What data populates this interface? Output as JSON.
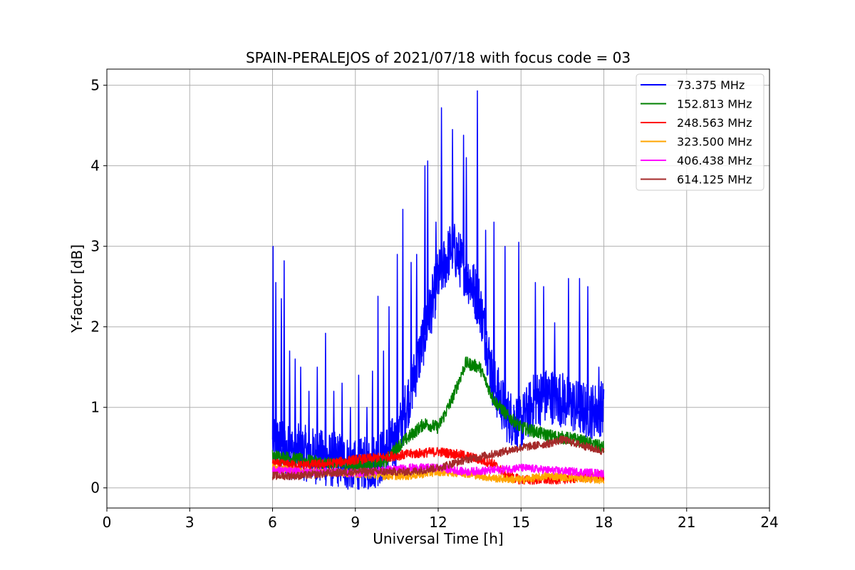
{
  "chart_data": {
    "type": "line",
    "title": "SPAIN-PERALEJOS of 2021/07/18 with focus code = 03",
    "xlabel": "Universal Time [h]",
    "ylabel": "Y-factor [dB]",
    "xlim": [
      0,
      24
    ],
    "ylim": [
      -0.25,
      5.2
    ],
    "xticks": [
      0,
      3,
      6,
      9,
      12,
      15,
      18,
      21,
      24
    ],
    "yticks": [
      0,
      1,
      2,
      3,
      4,
      5
    ],
    "xtick_labels": [
      "0",
      "3",
      "6",
      "9",
      "12",
      "15",
      "18",
      "21",
      "24"
    ],
    "ytick_labels": [
      "0",
      "1",
      "2",
      "3",
      "4",
      "5"
    ],
    "grid": true,
    "legend_position": "top-right",
    "series": [
      {
        "name": "  73.375 MHz",
        "color": "#0000ff",
        "noise": 0.35,
        "x": [
          6.0,
          6.5,
          7.0,
          7.5,
          8.0,
          8.5,
          9.0,
          9.5,
          10.0,
          10.5,
          11.0,
          11.5,
          12.0,
          12.5,
          13.0,
          13.5,
          14.0,
          14.5,
          15.0,
          15.5,
          16.0,
          16.5,
          17.0,
          17.5,
          18.0
        ],
        "y": [
          0.6,
          0.45,
          0.45,
          0.4,
          0.35,
          0.35,
          0.25,
          0.3,
          0.4,
          0.6,
          1.2,
          1.9,
          2.6,
          3.0,
          2.7,
          2.3,
          1.3,
          0.9,
          0.8,
          1.1,
          1.15,
          1.1,
          1.0,
          0.95,
          1.0
        ],
        "spikes": [
          [
            6.0,
            3.0
          ],
          [
            6.1,
            2.55
          ],
          [
            6.3,
            2.35
          ],
          [
            6.4,
            2.82
          ],
          [
            6.6,
            1.7
          ],
          [
            6.8,
            1.6
          ],
          [
            7.0,
            1.5
          ],
          [
            7.3,
            1.2
          ],
          [
            7.6,
            1.5
          ],
          [
            7.9,
            1.92
          ],
          [
            8.2,
            1.2
          ],
          [
            8.5,
            1.3
          ],
          [
            8.8,
            1.0
          ],
          [
            9.1,
            1.4
          ],
          [
            9.4,
            1.0
          ],
          [
            9.6,
            1.45
          ],
          [
            9.8,
            2.38
          ],
          [
            10.0,
            1.7
          ],
          [
            10.2,
            2.25
          ],
          [
            10.5,
            2.9
          ],
          [
            10.7,
            3.46
          ],
          [
            11.0,
            2.8
          ],
          [
            11.2,
            2.9
          ],
          [
            11.5,
            4.0
          ],
          [
            11.6,
            4.06
          ],
          [
            11.9,
            3.3
          ],
          [
            12.1,
            4.72
          ],
          [
            12.5,
            4.45
          ],
          [
            12.9,
            4.38
          ],
          [
            13.0,
            4.1
          ],
          [
            13.4,
            4.93
          ],
          [
            13.7,
            3.2
          ],
          [
            14.0,
            3.3
          ],
          [
            14.4,
            3.0
          ],
          [
            14.9,
            3.05
          ],
          [
            15.5,
            2.55
          ],
          [
            15.8,
            2.5
          ],
          [
            16.2,
            2.05
          ],
          [
            16.7,
            2.6
          ],
          [
            17.1,
            2.6
          ],
          [
            17.4,
            2.5
          ],
          [
            17.8,
            1.5
          ]
        ]
      },
      {
        "name": "152.813 MHz",
        "color": "#008000",
        "noise": 0.08,
        "x": [
          6.0,
          7.0,
          8.0,
          9.0,
          10.0,
          10.5,
          11.0,
          11.5,
          12.0,
          12.5,
          13.0,
          13.5,
          14.0,
          14.5,
          15.0,
          16.0,
          17.0,
          18.0
        ],
        "y": [
          0.4,
          0.35,
          0.3,
          0.28,
          0.3,
          0.5,
          0.65,
          0.8,
          0.75,
          1.1,
          1.55,
          1.5,
          1.1,
          0.9,
          0.75,
          0.65,
          0.6,
          0.5
        ]
      },
      {
        "name": "248.563 MHz",
        "color": "#ff0000",
        "noise": 0.06,
        "x": [
          6.0,
          7.0,
          8.0,
          9.0,
          10.0,
          11.0,
          12.0,
          13.0,
          14.0,
          14.5,
          15.0,
          16.0,
          17.0,
          18.0
        ],
        "y": [
          0.3,
          0.28,
          0.3,
          0.35,
          0.38,
          0.42,
          0.45,
          0.4,
          0.3,
          0.15,
          0.1,
          0.1,
          0.12,
          0.15
        ]
      },
      {
        "name": "323.500 MHz",
        "color": "#ffa500",
        "noise": 0.05,
        "x": [
          6.0,
          7.0,
          8.0,
          9.0,
          10.0,
          11.0,
          12.0,
          13.0,
          14.0,
          15.0,
          16.0,
          17.0,
          18.0
        ],
        "y": [
          0.25,
          0.2,
          0.2,
          0.18,
          0.15,
          0.15,
          0.2,
          0.18,
          0.12,
          0.1,
          0.15,
          0.12,
          0.1
        ]
      },
      {
        "name": "406.438 MHz",
        "color": "#ff00ff",
        "noise": 0.05,
        "x": [
          6.0,
          7.0,
          8.0,
          9.0,
          10.0,
          11.0,
          12.0,
          13.0,
          14.0,
          15.0,
          16.0,
          17.0,
          18.0
        ],
        "y": [
          0.22,
          0.2,
          0.2,
          0.18,
          0.22,
          0.25,
          0.25,
          0.2,
          0.22,
          0.25,
          0.22,
          0.2,
          0.18
        ]
      },
      {
        "name": "614.125 MHz",
        "color": "#a52a2a",
        "noise": 0.05,
        "x": [
          6.0,
          7.0,
          8.0,
          9.0,
          10.0,
          11.0,
          12.0,
          13.0,
          14.0,
          15.0,
          16.0,
          16.5,
          17.0,
          17.5,
          18.0
        ],
        "y": [
          0.15,
          0.15,
          0.18,
          0.2,
          0.2,
          0.2,
          0.25,
          0.35,
          0.42,
          0.5,
          0.55,
          0.6,
          0.55,
          0.5,
          0.45
        ]
      }
    ]
  }
}
